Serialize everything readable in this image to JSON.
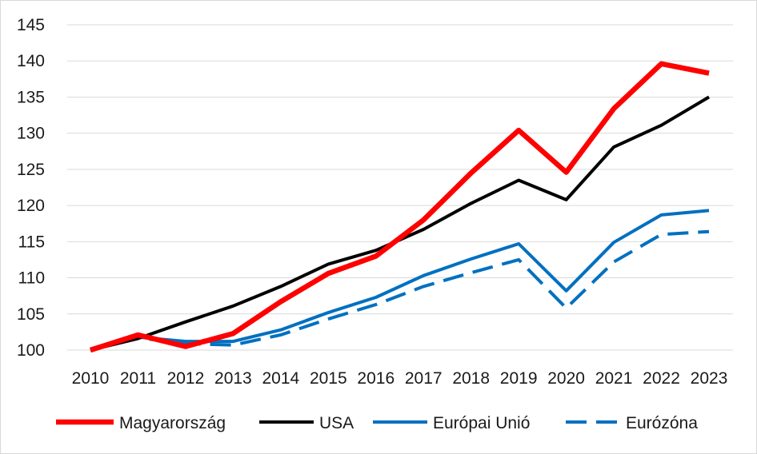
{
  "chart_data": {
    "type": "line",
    "title": "",
    "xlabel": "",
    "ylabel": "",
    "x": [
      2010,
      2011,
      2012,
      2013,
      2014,
      2015,
      2016,
      2017,
      2018,
      2019,
      2020,
      2021,
      2022,
      2023
    ],
    "x_tick_labels": [
      "2010",
      "2011",
      "2012",
      "2013",
      "2014",
      "2015",
      "2016",
      "2017",
      "2018",
      "2019",
      "2020",
      "2021",
      "2022",
      "2023"
    ],
    "ylim": [
      100,
      145
    ],
    "y_ticks": [
      100,
      105,
      110,
      115,
      120,
      125,
      130,
      135,
      140,
      145
    ],
    "y_tick_labels": [
      "100",
      "105",
      "110",
      "115",
      "120",
      "125",
      "130",
      "135",
      "140",
      "145"
    ],
    "grid": "horizontal",
    "legend_position": "bottom",
    "series": [
      {
        "name": "Magyarország",
        "color": "#ff0000",
        "style": "solid-thick",
        "values": [
          100,
          102.1,
          100.5,
          102.3,
          106.7,
          110.6,
          113.0,
          118.0,
          124.5,
          130.4,
          124.6,
          133.4,
          139.6,
          138.3
        ]
      },
      {
        "name": "USA",
        "color": "#000000",
        "style": "solid",
        "values": [
          100,
          101.6,
          103.9,
          106.1,
          108.8,
          111.9,
          113.8,
          116.7,
          120.3,
          123.5,
          120.8,
          128.1,
          131.1,
          135.0
        ]
      },
      {
        "name": "Európai Unió",
        "color": "#0070c0",
        "style": "solid",
        "values": [
          100,
          101.8,
          101.2,
          101.2,
          102.8,
          105.2,
          107.3,
          110.3,
          112.6,
          114.7,
          108.2,
          114.9,
          118.7,
          119.3
        ]
      },
      {
        "name": "Eurózóna",
        "color": "#0070c0",
        "style": "dashed",
        "values": [
          100,
          101.7,
          100.9,
          100.7,
          102.1,
          104.3,
          106.3,
          108.8,
          110.7,
          112.5,
          105.8,
          112.2,
          116.0,
          116.4
        ]
      }
    ]
  }
}
